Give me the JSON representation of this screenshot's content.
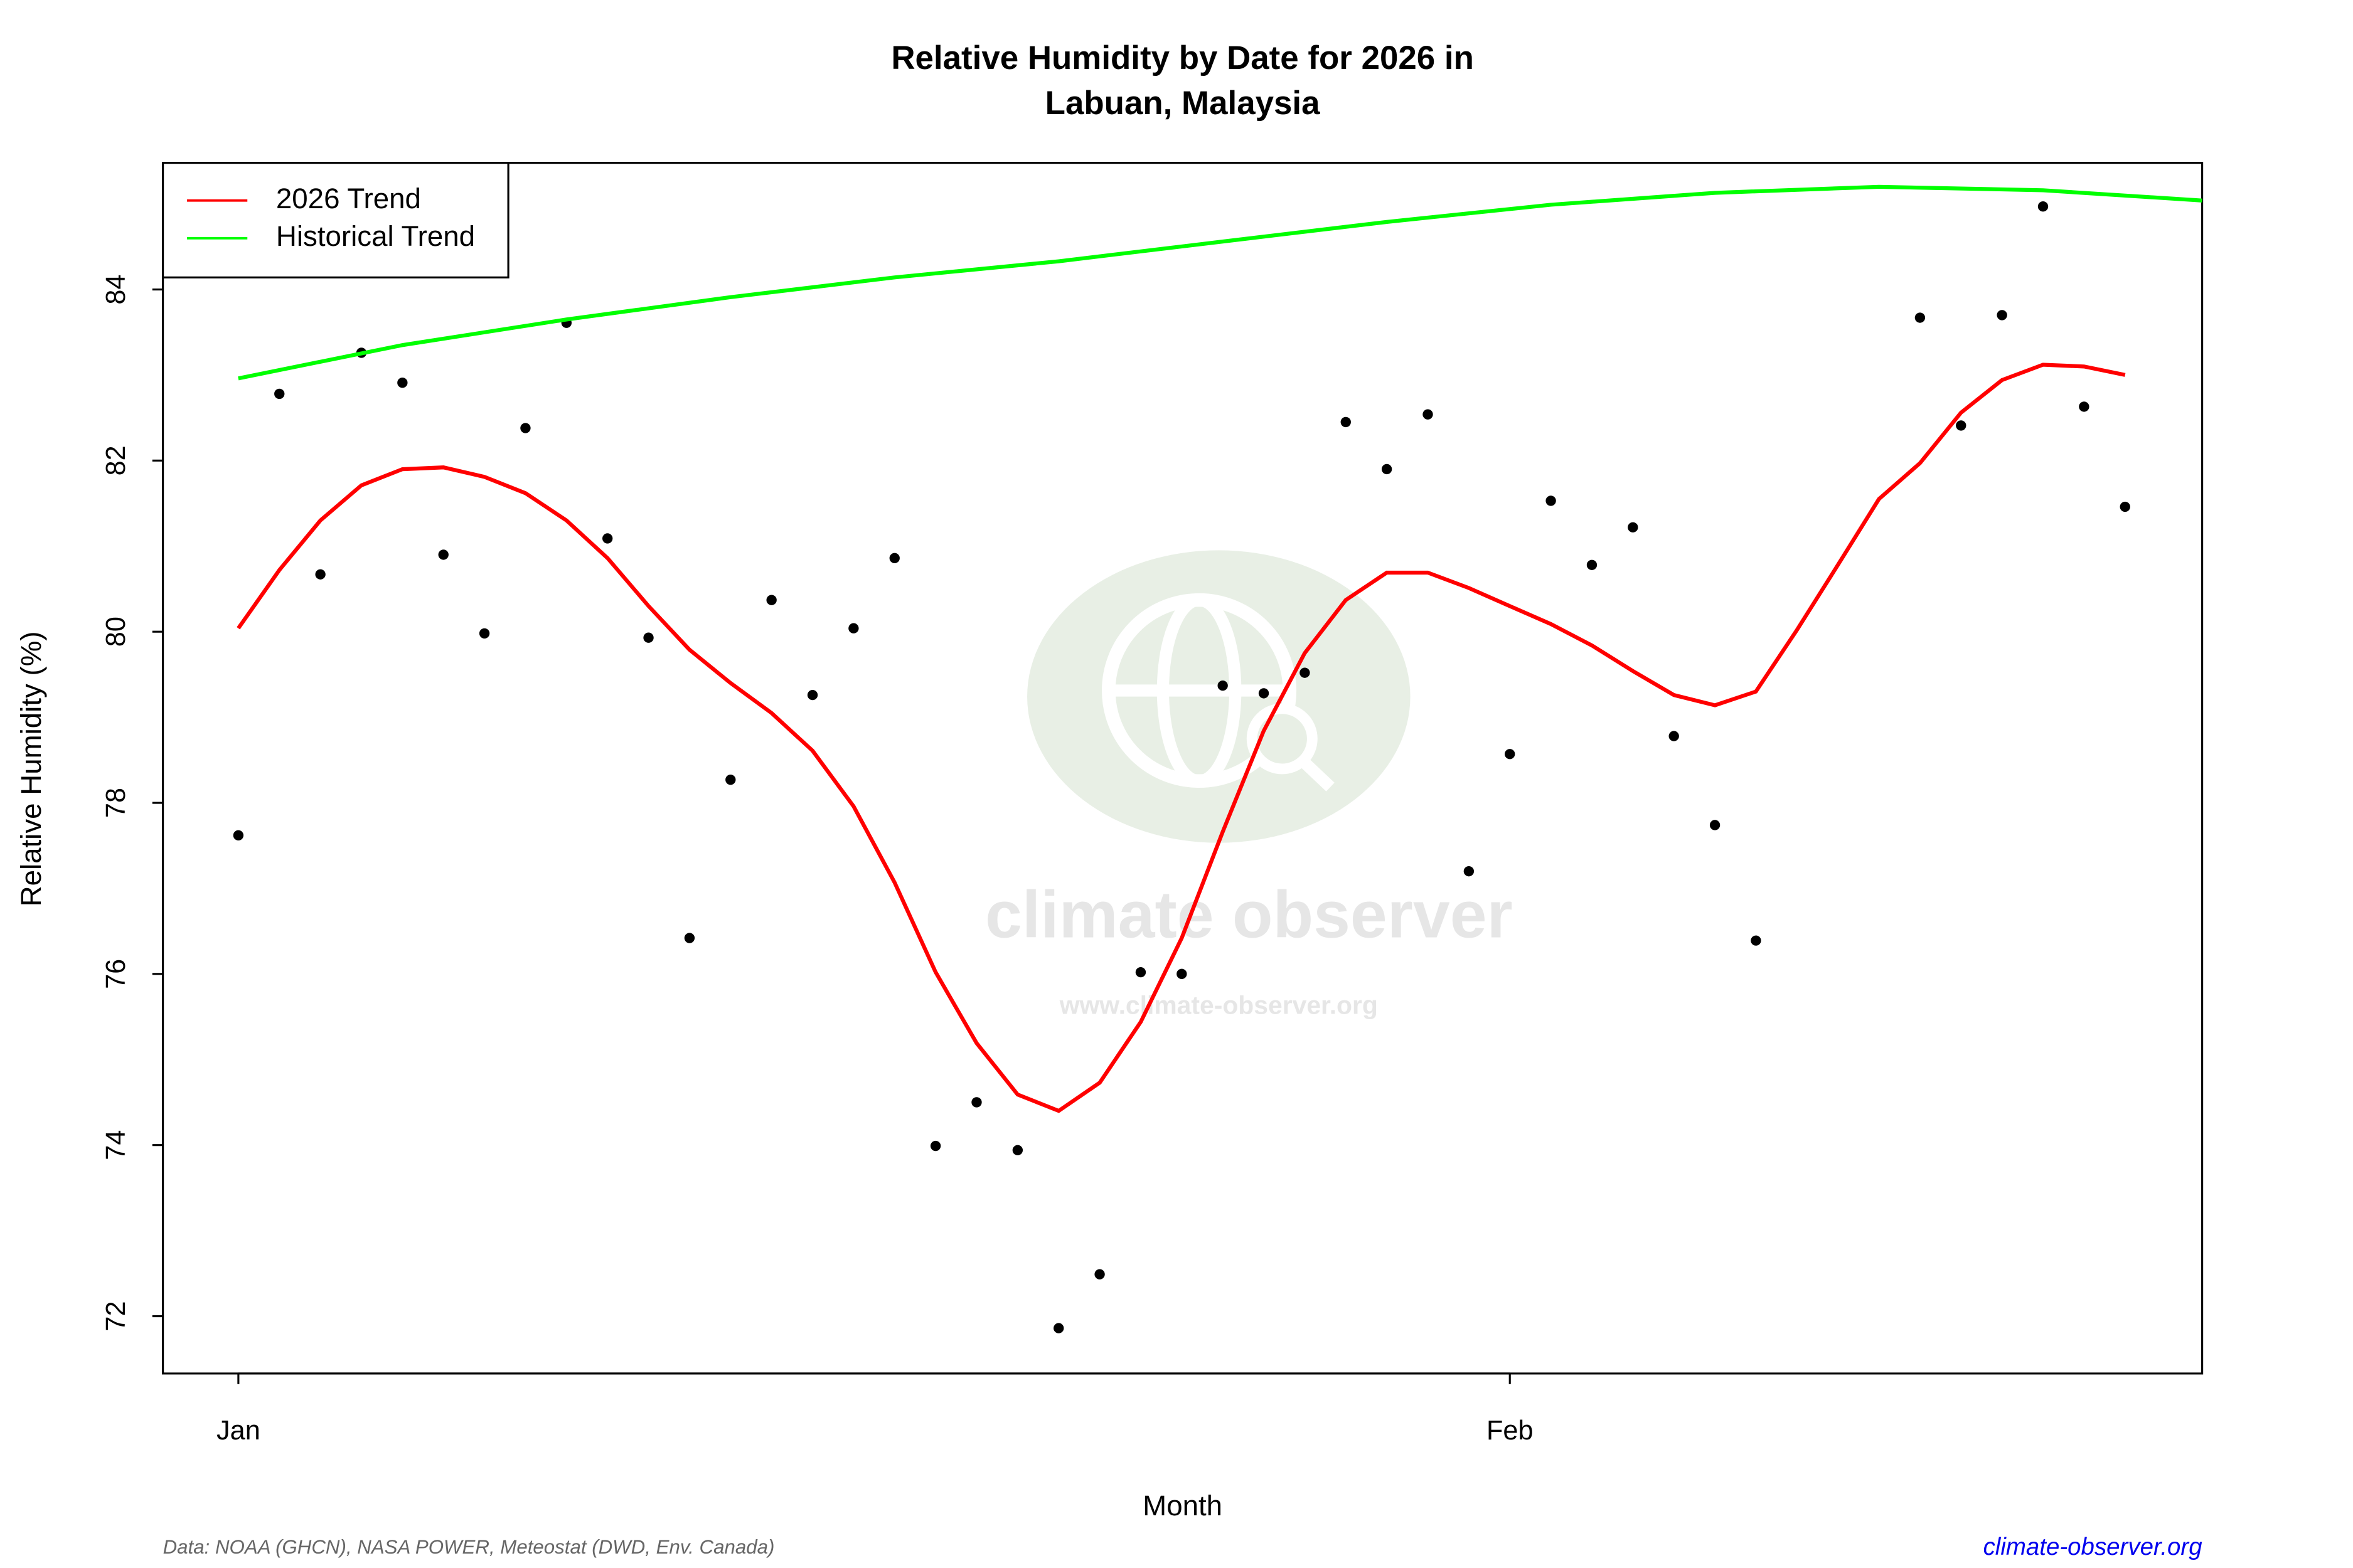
{
  "chart_data": {
    "type": "scatter",
    "title": "Relative Humidity by Date for 2026 in",
    "subtitle": "Labuan, Malaysia",
    "x_label": "Month",
    "y_label": "Relative Humidity (%)",
    "source": "Data: NOAA (GHCN), NASA POWER, Meteostat (DWD, Env. Canada)",
    "site": "climate-observer.org",
    "watermark": {
      "name": "climate observer",
      "url": "www.climate-observer.org"
    },
    "x": [
      1,
      2,
      3,
      4,
      5,
      6,
      7,
      8,
      9,
      10,
      11,
      12,
      13,
      14,
      15,
      16,
      17,
      18,
      19,
      20,
      21,
      22,
      23,
      24,
      25,
      26,
      27,
      28,
      29,
      30,
      31,
      32,
      33,
      34,
      35,
      36,
      37,
      38,
      39,
      40,
      41,
      42,
      43,
      44,
      45,
      46,
      47
    ],
    "xlim": [
      -0.84,
      48.88
    ],
    "xticks": [
      {
        "value": 1,
        "label": "Jan"
      },
      {
        "value": 32,
        "label": "Feb"
      }
    ],
    "ylim": [
      71.33,
      85.48
    ],
    "yticks": [
      72,
      74,
      76,
      78,
      80,
      82,
      84
    ],
    "legend": "top-left",
    "series": [
      {
        "type": "scatter",
        "color": "#000000",
        "values": [
          77.62,
          82.78,
          80.67,
          83.26,
          82.91,
          80.9,
          79.98,
          82.38,
          83.61,
          81.09,
          79.93,
          76.42,
          78.27,
          80.37,
          79.26,
          80.04,
          80.86,
          73.99,
          74.5,
          73.94,
          71.86,
          72.49,
          76.02,
          76.0,
          79.37,
          79.28,
          79.52,
          82.45,
          81.9,
          82.54,
          77.2,
          78.57,
          81.53,
          80.78,
          81.22,
          78.78,
          77.74,
          76.39,
          null,
          null,
          null,
          83.67,
          82.41,
          83.7,
          84.97,
          82.63,
          81.46
        ]
      },
      {
        "name": "2026 Trend",
        "type": "line",
        "color": "#ff0000",
        "values": [
          80.04,
          80.72,
          81.3,
          81.71,
          81.9,
          81.92,
          81.81,
          81.62,
          81.3,
          80.86,
          80.3,
          79.79,
          79.4,
          79.05,
          78.61,
          77.96,
          77.07,
          76.02,
          75.19,
          74.59,
          74.4,
          74.73,
          75.44,
          76.42,
          77.66,
          78.84,
          79.75,
          80.37,
          80.69,
          80.69,
          80.51,
          80.3,
          80.09,
          79.84,
          79.54,
          79.26,
          79.14,
          79.3,
          80.02,
          80.78,
          81.55,
          81.97,
          82.56,
          82.94,
          83.12,
          83.1,
          83.0
        ]
      },
      {
        "name": "Historical Trend",
        "type": "line",
        "color": "#00ff00",
        "x": [
          1,
          5,
          9,
          13,
          17,
          21,
          25,
          29,
          33,
          37,
          41,
          45,
          48.88
        ],
        "values": [
          82.96,
          83.35,
          83.65,
          83.91,
          84.14,
          84.33,
          84.56,
          84.79,
          84.99,
          85.13,
          85.2,
          85.16,
          85.04
        ]
      }
    ]
  }
}
